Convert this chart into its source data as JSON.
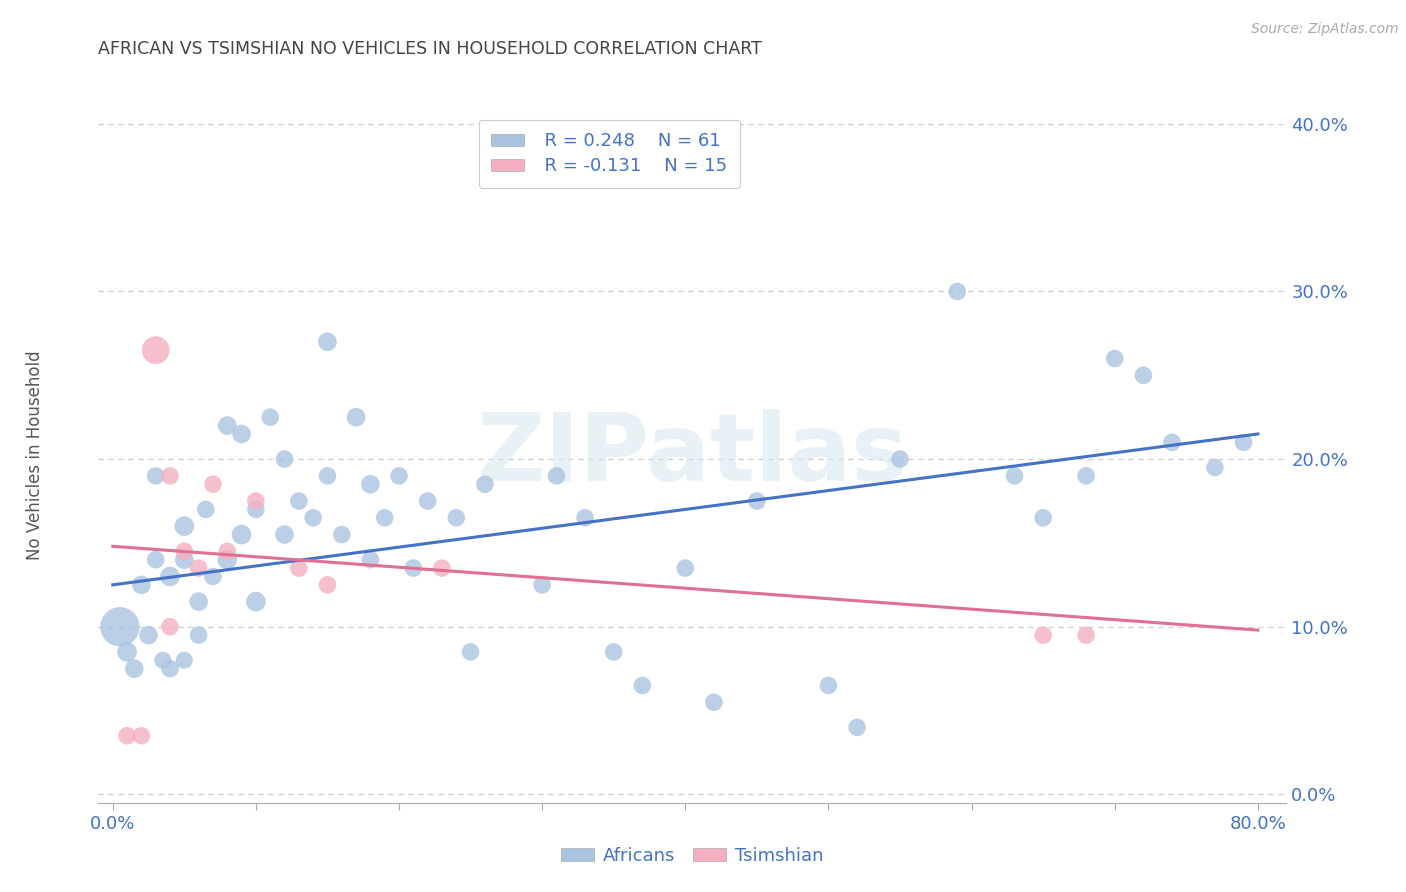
{
  "title": "AFRICAN VS TSIMSHIAN NO VEHICLES IN HOUSEHOLD CORRELATION CHART",
  "source": "Source: ZipAtlas.com",
  "ylabel": "No Vehicles in Household",
  "watermark": "ZIPatlas",
  "legend_r_african": "R = 0.248",
  "legend_n_african": "N = 61",
  "legend_r_tsimshian": "R = -0.131",
  "legend_n_tsimshian": "N = 15",
  "african_color": "#aac4e0",
  "african_line_color": "#4472c4",
  "tsimshian_color": "#f4b0c0",
  "tsimshian_line_color": "#e07090",
  "background_color": "#ffffff",
  "xlim": [
    -0.01,
    0.82
  ],
  "ylim": [
    -0.005,
    0.41
  ],
  "xtick_first": "0.0%",
  "xtick_last": "80.0%",
  "ytick_vals": [
    0.0,
    0.1,
    0.2,
    0.3,
    0.4
  ],
  "africans_x": [
    0.005,
    0.01,
    0.015,
    0.02,
    0.025,
    0.03,
    0.03,
    0.035,
    0.04,
    0.04,
    0.05,
    0.05,
    0.05,
    0.06,
    0.06,
    0.065,
    0.07,
    0.08,
    0.08,
    0.09,
    0.09,
    0.1,
    0.1,
    0.11,
    0.12,
    0.12,
    0.13,
    0.14,
    0.15,
    0.15,
    0.16,
    0.17,
    0.18,
    0.18,
    0.19,
    0.2,
    0.21,
    0.22,
    0.24,
    0.25,
    0.26,
    0.3,
    0.31,
    0.33,
    0.35,
    0.37,
    0.4,
    0.42,
    0.45,
    0.5,
    0.52,
    0.55,
    0.59,
    0.63,
    0.65,
    0.68,
    0.7,
    0.72,
    0.74,
    0.77,
    0.79
  ],
  "africans_y": [
    0.1,
    0.085,
    0.075,
    0.125,
    0.095,
    0.19,
    0.14,
    0.08,
    0.13,
    0.075,
    0.16,
    0.14,
    0.08,
    0.115,
    0.095,
    0.17,
    0.13,
    0.22,
    0.14,
    0.215,
    0.155,
    0.17,
    0.115,
    0.225,
    0.2,
    0.155,
    0.175,
    0.165,
    0.27,
    0.19,
    0.155,
    0.225,
    0.185,
    0.14,
    0.165,
    0.19,
    0.135,
    0.175,
    0.165,
    0.085,
    0.185,
    0.125,
    0.19,
    0.165,
    0.085,
    0.065,
    0.135,
    0.055,
    0.175,
    0.065,
    0.04,
    0.2,
    0.3,
    0.19,
    0.165,
    0.19,
    0.26,
    0.25,
    0.21,
    0.195,
    0.21
  ],
  "africans_size": [
    800,
    200,
    180,
    180,
    180,
    160,
    160,
    150,
    200,
    160,
    200,
    180,
    150,
    180,
    160,
    160,
    160,
    180,
    200,
    180,
    200,
    160,
    200,
    160,
    160,
    180,
    160,
    160,
    180,
    160,
    160,
    180,
    180,
    160,
    160,
    160,
    160,
    160,
    160,
    160,
    160,
    160,
    160,
    160,
    160,
    160,
    160,
    160,
    160,
    160,
    160,
    160,
    160,
    160,
    160,
    160,
    160,
    160,
    160,
    160,
    160
  ],
  "tsimshian_x": [
    0.01,
    0.02,
    0.03,
    0.04,
    0.04,
    0.05,
    0.06,
    0.07,
    0.08,
    0.1,
    0.13,
    0.15,
    0.23,
    0.65,
    0.68
  ],
  "tsimshian_y": [
    0.035,
    0.035,
    0.265,
    0.19,
    0.1,
    0.145,
    0.135,
    0.185,
    0.145,
    0.175,
    0.135,
    0.125,
    0.135,
    0.095,
    0.095
  ],
  "tsimshian_size": [
    160,
    160,
    400,
    160,
    160,
    160,
    160,
    160,
    160,
    160,
    160,
    160,
    160,
    160,
    160
  ],
  "african_trendline_x": [
    0.0,
    0.8
  ],
  "african_trendline_y": [
    0.125,
    0.215
  ],
  "tsimshian_trendline_x": [
    0.0,
    0.8
  ],
  "tsimshian_trendline_y": [
    0.148,
    0.098
  ]
}
